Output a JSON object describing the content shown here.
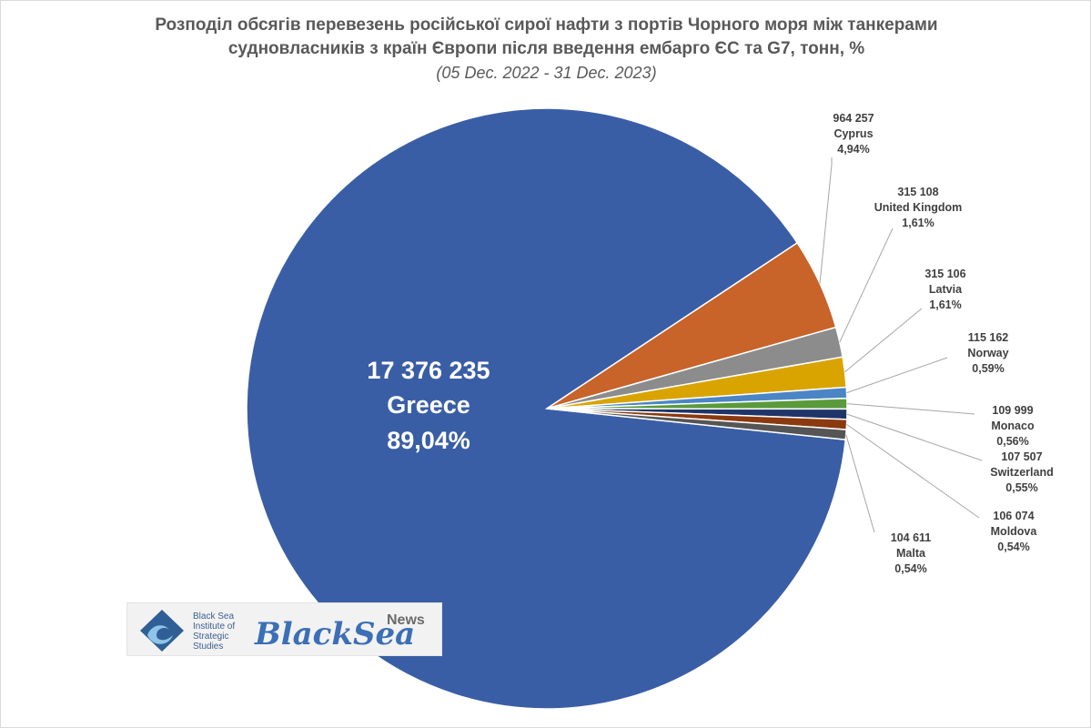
{
  "title": {
    "line1": "Розподіл обсягів перевезень російської сирої нафти з портів Чорного моря між танкерами",
    "line2": "судновласників з країн Європи після введення ембарго ЄС та G7, тонн, %",
    "subtitle": "(05 Dec. 2022 - 31 Dec. 2023)"
  },
  "chart_data": {
    "type": "pie",
    "title": "Розподіл обсягів перевезень російської сирої нафти з портів Чорного моря між танкерами судновласників з країн Європи після введення ембарго ЄС та G7, тонн, %",
    "subtitle": "(05 Dec. 2022 - 31 Dec. 2023)",
    "slices": [
      {
        "name": "Greece",
        "value": 17376235,
        "value_label": "17 376 235",
        "percent_label": "89,04%",
        "color": "#3a5ea5"
      },
      {
        "name": "Cyprus",
        "value": 964257,
        "value_label": "964 257",
        "percent_label": "4,94%",
        "color": "#c8632a"
      },
      {
        "name": "United Kingdom",
        "value": 315108,
        "value_label": "315 108",
        "percent_label": "1,61%",
        "color": "#8c8c8c"
      },
      {
        "name": "Latvia",
        "value": 315106,
        "value_label": "315 106",
        "percent_label": "1,61%",
        "color": "#d9a400"
      },
      {
        "name": "Norway",
        "value": 115162,
        "value_label": "115 162",
        "percent_label": "0,59%",
        "color": "#4a86c6"
      },
      {
        "name": "Monaco",
        "value": 109999,
        "value_label": "109 999",
        "percent_label": "0,56%",
        "color": "#5b9a3c"
      },
      {
        "name": "Switzerland",
        "value": 107507,
        "value_label": "107 507",
        "percent_label": "0,55%",
        "color": "#1f3569"
      },
      {
        "name": "Moldova",
        "value": 106074,
        "value_label": "106 074",
        "percent_label": "0,54%",
        "color": "#8b3a0f"
      },
      {
        "name": "Malta",
        "value": 104611,
        "value_label": "104 611",
        "percent_label": "0,54%",
        "color": "#555555"
      }
    ]
  },
  "logo": {
    "institute_text": "Black Sea\nInstitute of\nStrategic\nStudies",
    "brand_main": "BlackSea",
    "brand_news": "News"
  }
}
